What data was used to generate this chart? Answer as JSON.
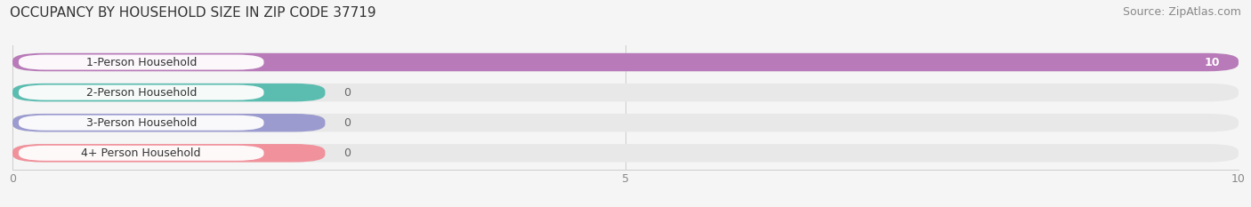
{
  "title": "OCCUPANCY BY HOUSEHOLD SIZE IN ZIP CODE 37719",
  "source": "Source: ZipAtlas.com",
  "categories": [
    "1-Person Household",
    "2-Person Household",
    "3-Person Household",
    "4+ Person Household"
  ],
  "values": [
    10,
    0,
    0,
    0
  ],
  "bar_colors": [
    "#b87ab8",
    "#5bbcb0",
    "#9b9bcf",
    "#f0919b"
  ],
  "bar_bg_color": "#e8e8e8",
  "xlim": [
    0,
    10
  ],
  "xticks": [
    0,
    5,
    10
  ],
  "background_color": "#f5f5f5",
  "title_fontsize": 11,
  "source_fontsize": 9,
  "label_fontsize": 9,
  "value_fontsize": 9
}
